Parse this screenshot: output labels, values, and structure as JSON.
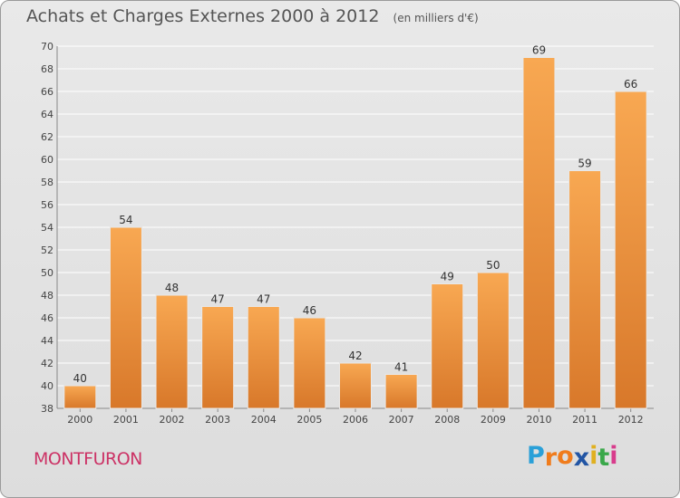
{
  "title": "Achats et Charges Externes 2000 à 2012",
  "subtitle": "(en milliers d'€)",
  "commune": "MONTFURON",
  "brand": {
    "letters": [
      "P",
      "r",
      "o",
      "x",
      "i",
      "t",
      "i"
    ],
    "colors": [
      "#2aa0d8",
      "#f07c1c",
      "#f07c1c",
      "#2255a4",
      "#e0b020",
      "#3aa84a",
      "#d83c8c"
    ]
  },
  "colors": {
    "bar_light": "#f8a852",
    "bar_dark": "#d8782a",
    "grid": "#ffffff",
    "commune": "#cc3366"
  },
  "chart_data": {
    "type": "bar",
    "categories": [
      "2000",
      "2001",
      "2002",
      "2003",
      "2004",
      "2005",
      "2006",
      "2007",
      "2008",
      "2009",
      "2010",
      "2011",
      "2012"
    ],
    "values": [
      40,
      54,
      48,
      47,
      47,
      46,
      42,
      41,
      49,
      50,
      69,
      59,
      66
    ],
    "data_labels": [
      "40",
      "54",
      "48",
      "47",
      "47",
      "46",
      "42",
      "41",
      "49",
      "50",
      "69",
      "59",
      "66"
    ],
    "ylim": [
      38,
      70
    ],
    "yticks": [
      "38",
      "40",
      "42",
      "44",
      "46",
      "48",
      "50",
      "52",
      "54",
      "56",
      "58",
      "60",
      "62",
      "64",
      "66",
      "68",
      "70"
    ],
    "grid": true,
    "title": "Achats et Charges Externes 2000 à 2012",
    "xlabel": "",
    "ylabel": ""
  }
}
